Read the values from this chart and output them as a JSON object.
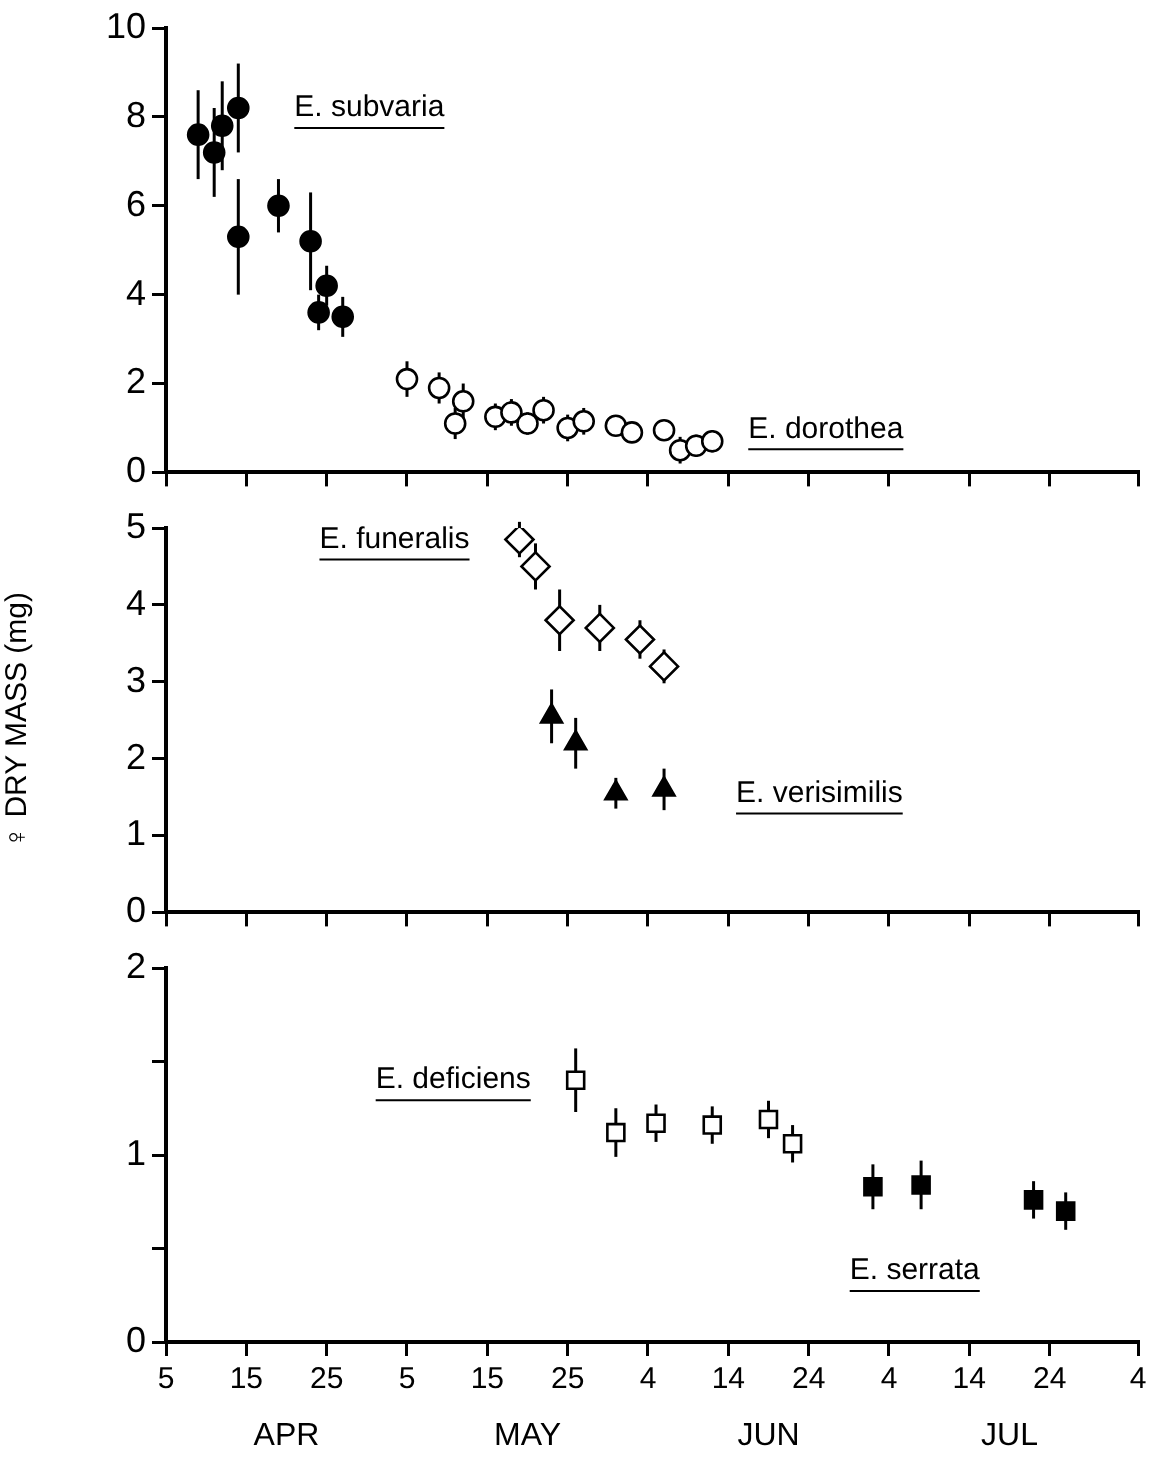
{
  "chart_data": [
    {
      "type": "scatter",
      "ylim": [
        0,
        10
      ],
      "yticks": [
        0,
        2,
        4,
        6,
        8,
        10
      ],
      "xlim": [
        "--04-05",
        "--08-04"
      ],
      "xticks": [
        {
          "value": "--04-05",
          "label": "5"
        },
        {
          "value": "--04-15",
          "label": "15"
        },
        {
          "value": "--04-25",
          "label": "25"
        },
        {
          "value": "--05-05",
          "label": "5"
        },
        {
          "value": "--05-15",
          "label": "15"
        },
        {
          "value": "--05-25",
          "label": "25"
        },
        {
          "value": "--06-04",
          "label": "4"
        },
        {
          "value": "--06-14",
          "label": "14"
        },
        {
          "value": "--06-24",
          "label": "24"
        },
        {
          "value": "--07-04",
          "label": "4"
        },
        {
          "value": "--07-14",
          "label": "14"
        },
        {
          "value": "--07-24",
          "label": "24"
        },
        {
          "value": "--08-04",
          "label": "4"
        }
      ],
      "tick_labels": "y",
      "grid": false,
      "legend": false,
      "series": [
        {
          "name": "E. subvaria",
          "color": "#000000",
          "marker": "circle",
          "x": [
            "--04-09",
            "--04-11",
            "--04-12",
            "--04-14",
            "--04-14",
            "--04-19",
            "--04-23",
            "--04-24",
            "--04-25",
            "--04-27"
          ],
          "values": [
            7.6,
            7.2,
            7.8,
            8.2,
            5.3,
            6.0,
            5.2,
            3.6,
            4.2,
            3.5
          ],
          "errors": [
            1.0,
            1.0,
            1.0,
            1.0,
            1.3,
            0.6,
            1.1,
            0.4,
            0.45,
            0.45
          ]
        },
        {
          "name": "E. dorothea",
          "color": "#ffffff",
          "marker": "circle",
          "x": [
            "--05-05",
            "--05-09",
            "--05-11",
            "--05-12",
            "--05-16",
            "--05-18",
            "--05-20",
            "--05-22",
            "--05-25",
            "--05-27",
            "--05-31",
            "--06-02",
            "--06-06",
            "--06-08",
            "--06-10",
            "--06-12"
          ],
          "values": [
            2.1,
            1.9,
            1.1,
            1.6,
            1.25,
            1.35,
            1.1,
            1.4,
            1.0,
            1.15,
            1.05,
            0.9,
            0.95,
            0.5,
            0.6,
            0.7
          ],
          "errors": [
            0.4,
            0.35,
            0.35,
            0.4,
            0.3,
            0.3,
            0.25,
            0.3,
            0.3,
            0.3,
            0.2,
            0.2,
            0.2,
            0.3,
            0.25,
            0.25
          ]
        }
      ]
    },
    {
      "type": "scatter",
      "ylabel": "♀ DRY MASS (mg)",
      "ylim": [
        0,
        5
      ],
      "yticks": [
        0,
        1,
        2,
        3,
        4,
        5
      ],
      "xlim": [
        "--04-05",
        "--08-04"
      ],
      "xticks": [
        {
          "value": "--04-05",
          "label": "5"
        },
        {
          "value": "--04-15",
          "label": "15"
        },
        {
          "value": "--04-25",
          "label": "25"
        },
        {
          "value": "--05-05",
          "label": "5"
        },
        {
          "value": "--05-15",
          "label": "15"
        },
        {
          "value": "--05-25",
          "label": "25"
        },
        {
          "value": "--06-04",
          "label": "4"
        },
        {
          "value": "--06-14",
          "label": "14"
        },
        {
          "value": "--06-24",
          "label": "24"
        },
        {
          "value": "--07-04",
          "label": "4"
        },
        {
          "value": "--07-14",
          "label": "14"
        },
        {
          "value": "--07-24",
          "label": "24"
        },
        {
          "value": "--08-04",
          "label": "4"
        }
      ],
      "tick_labels": "y",
      "grid": false,
      "legend": false,
      "series": [
        {
          "name": "E. funeralis",
          "color": "#ffffff",
          "marker": "diamond",
          "x": [
            "--05-19",
            "--05-21",
            "--05-24",
            "--05-29",
            "--06-03",
            "--06-06"
          ],
          "values": [
            4.85,
            4.5,
            3.8,
            3.7,
            3.55,
            3.2
          ],
          "errors": [
            0.23,
            0.3,
            0.4,
            0.3,
            0.25,
            0.22
          ]
        },
        {
          "name": "E. verisimilis",
          "color": "#000000",
          "marker": "triangle",
          "x": [
            "--05-23",
            "--05-26",
            "--05-31",
            "--06-06"
          ],
          "values": [
            2.55,
            2.2,
            1.55,
            1.6
          ],
          "errors": [
            0.35,
            0.33,
            0.2,
            0.27
          ]
        }
      ]
    },
    {
      "type": "scatter",
      "ylim": [
        0,
        2
      ],
      "yticks": [
        0,
        {
          "value": 0.5,
          "label": null
        },
        1,
        {
          "value": 1.5,
          "label": null
        },
        2
      ],
      "xlim": [
        "--04-05",
        "--08-04"
      ],
      "xticks": [
        {
          "value": "--04-05",
          "label": "5"
        },
        {
          "value": "--04-15",
          "label": "15"
        },
        {
          "value": "--04-25",
          "label": "25"
        },
        {
          "value": "--05-05",
          "label": "5"
        },
        {
          "value": "--05-15",
          "label": "15"
        },
        {
          "value": "--05-25",
          "label": "25"
        },
        {
          "value": "--06-04",
          "label": "4"
        },
        {
          "value": "--06-14",
          "label": "14"
        },
        {
          "value": "--06-24",
          "label": "24"
        },
        {
          "value": "--07-04",
          "label": "4"
        },
        {
          "value": "--07-14",
          "label": "14"
        },
        {
          "value": "--07-24",
          "label": "24"
        },
        {
          "value": "--08-04",
          "label": "4"
        }
      ],
      "grid": false,
      "legend": false,
      "annotations": [
        "APR",
        "MAY",
        "JUN",
        "JUL"
      ],
      "series": [
        {
          "name": "E. deficiens",
          "color": "#ffffff",
          "marker": "square",
          "x": [
            "--05-26",
            "--05-31",
            "--06-05",
            "--06-12",
            "--06-19",
            "--06-22"
          ],
          "values": [
            1.4,
            1.12,
            1.17,
            1.16,
            1.19,
            1.06
          ],
          "errors": [
            0.17,
            0.13,
            0.1,
            0.1,
            0.1,
            0.1
          ]
        },
        {
          "name": "E. serrata",
          "color": "#000000",
          "marker": "square",
          "x": [
            "--07-02",
            "--07-08",
            "--07-22",
            "--07-26"
          ],
          "values": [
            0.83,
            0.84,
            0.76,
            0.7
          ],
          "errors": [
            0.12,
            0.13,
            0.1,
            0.1
          ]
        }
      ]
    }
  ]
}
